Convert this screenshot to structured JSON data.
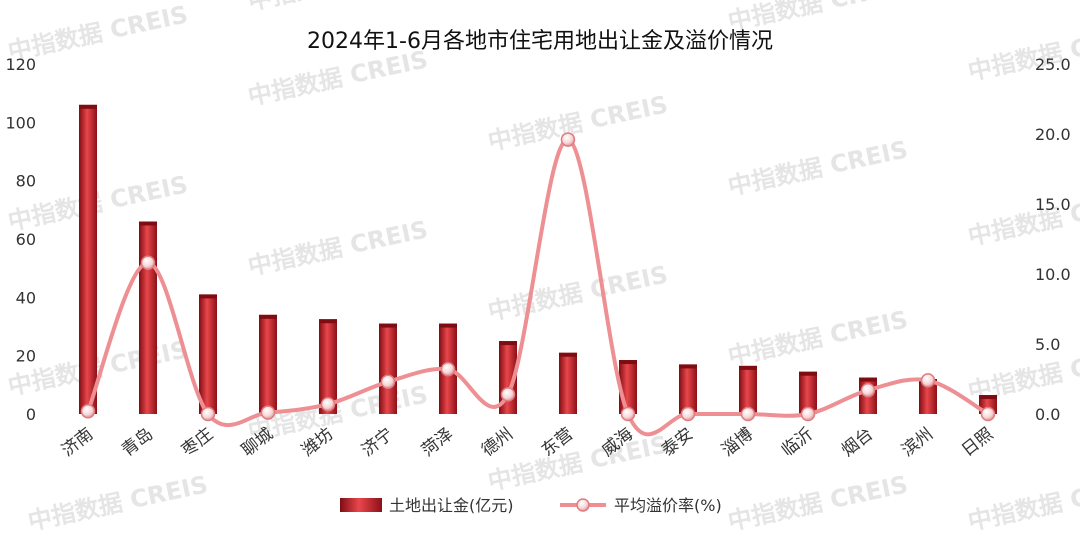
{
  "watermark": "中指数据 CREIS",
  "colors": {
    "bar": "#c0171d",
    "bar_dark": "#7e0d12",
    "bar_light": "#e8474c",
    "line": "#ee8f93",
    "axis_text": "#333333"
  },
  "chart_data": {
    "type": "bar+line",
    "title": "2024年1-6月各地市住宅用地出让金及溢价情况",
    "categories": [
      "济南",
      "青岛",
      "枣庄",
      "聊城",
      "潍坊",
      "济宁",
      "菏泽",
      "德州",
      "东营",
      "威海",
      "泰安",
      "淄博",
      "临沂",
      "烟台",
      "滨州",
      "日照"
    ],
    "series": [
      {
        "name": "土地出让金(亿元)",
        "type": "bar",
        "axis": "left",
        "values": [
          106,
          66,
          41,
          34,
          32.5,
          31,
          31,
          25,
          21,
          18.5,
          17,
          16.5,
          14.5,
          12.5,
          12,
          6.5
        ]
      },
      {
        "name": "平均溢价率(%)",
        "type": "line",
        "axis": "right",
        "values": [
          0.2,
          10.8,
          0.0,
          0.1,
          0.7,
          2.3,
          3.2,
          1.4,
          19.6,
          0.0,
          0.0,
          0.0,
          0.0,
          1.7,
          2.4,
          0.0
        ]
      }
    ],
    "y_left": {
      "min": 0,
      "max": 120,
      "ticks": [
        "0",
        "20",
        "40",
        "60",
        "80",
        "100",
        "120"
      ]
    },
    "y_right": {
      "min": 0,
      "max": 25,
      "ticks": [
        "0.0",
        "5.0",
        "10.0",
        "15.0",
        "20.0",
        "25.0"
      ]
    },
    "grid": false,
    "legend_position": "bottom"
  }
}
